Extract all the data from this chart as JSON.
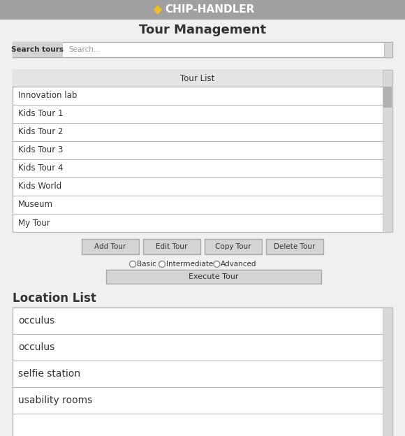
{
  "header_bg": "#a0a0a0",
  "header_text": "CHIP-HANDLER",
  "header_icon_color": "#f0c020",
  "title": "Tour Management",
  "search_label": "Search tours",
  "search_placeholder": "Search...",
  "tour_list_header": "Tour List",
  "tours": [
    "Innovation lab",
    "Kids Tour 1",
    "Kids Tour 2",
    "Kids Tour 3",
    "Kids Tour 4",
    "Kids World",
    "Museum",
    "My Tour"
  ],
  "buttons": [
    "Add Tour",
    "Edit Tour",
    "Copy Tour",
    "Delete Tour"
  ],
  "radio_options": [
    "Basic",
    "Intermediate",
    "Advanced"
  ],
  "execute_btn": "Execute Tour",
  "location_header": "Location List",
  "locations": [
    "occulus",
    "occulus",
    "selfie station",
    "usability rooms"
  ],
  "bg_color": "#f0f0f0",
  "list_header_bg": "#e4e4e4",
  "btn_bg": "#d4d4d4",
  "border_color": "#aaaaaa",
  "text_color": "#333333",
  "scrollbar_bg": "#d8d8d8",
  "scrollbar_thumb": "#b0b0b0",
  "list_border_color": "#b8b8b8",
  "white": "#ffffff"
}
